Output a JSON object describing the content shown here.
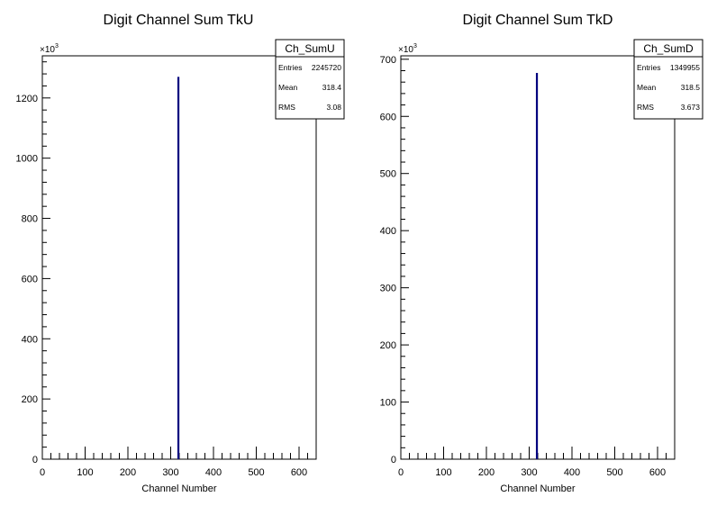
{
  "chart_data": [
    {
      "type": "bar",
      "title": "Digit Channel Sum TkU",
      "xlabel": "Channel Number",
      "ylabel": "",
      "y_multiplier_label": "×10",
      "y_multiplier_exp": "3",
      "xlim": [
        0,
        640
      ],
      "ylim": [
        0,
        1340
      ],
      "x_ticks": [
        0,
        100,
        200,
        300,
        400,
        500,
        600
      ],
      "x_tick_labels": [
        "0",
        "100",
        "200",
        "300",
        "400",
        "500",
        "600"
      ],
      "y_ticks": [
        0,
        200,
        400,
        600,
        800,
        1000,
        1200
      ],
      "y_tick_labels": [
        "0",
        "200",
        "400",
        "600",
        "800",
        "1000",
        "1200"
      ],
      "x": [
        318
      ],
      "values": [
        1270
      ],
      "line_color": "#00007f",
      "stats": {
        "name": "Ch_SumU",
        "rows": [
          {
            "label": "Entries",
            "value": "2245720"
          },
          {
            "label": "Mean",
            "value": "318.4"
          },
          {
            "label": "RMS",
            "value": "3.08"
          }
        ]
      }
    },
    {
      "type": "bar",
      "title": "Digit Channel Sum TkD",
      "xlabel": "Channel Number",
      "ylabel": "",
      "y_multiplier_label": "×10",
      "y_multiplier_exp": "3",
      "xlim": [
        0,
        640
      ],
      "ylim": [
        0,
        706
      ],
      "x_ticks": [
        0,
        100,
        200,
        300,
        400,
        500,
        600
      ],
      "x_tick_labels": [
        "0",
        "100",
        "200",
        "300",
        "400",
        "500",
        "600"
      ],
      "y_ticks": [
        0,
        100,
        200,
        300,
        400,
        500,
        600,
        700
      ],
      "y_tick_labels": [
        "0",
        "100",
        "200",
        "300",
        "400",
        "500",
        "600",
        "700"
      ],
      "x": [
        318
      ],
      "values": [
        676
      ],
      "line_color": "#00007f",
      "stats": {
        "name": "Ch_SumD",
        "rows": [
          {
            "label": "Entries",
            "value": "1349955"
          },
          {
            "label": "Mean",
            "value": "318.5"
          },
          {
            "label": "RMS",
            "value": "3.673"
          }
        ]
      }
    }
  ]
}
